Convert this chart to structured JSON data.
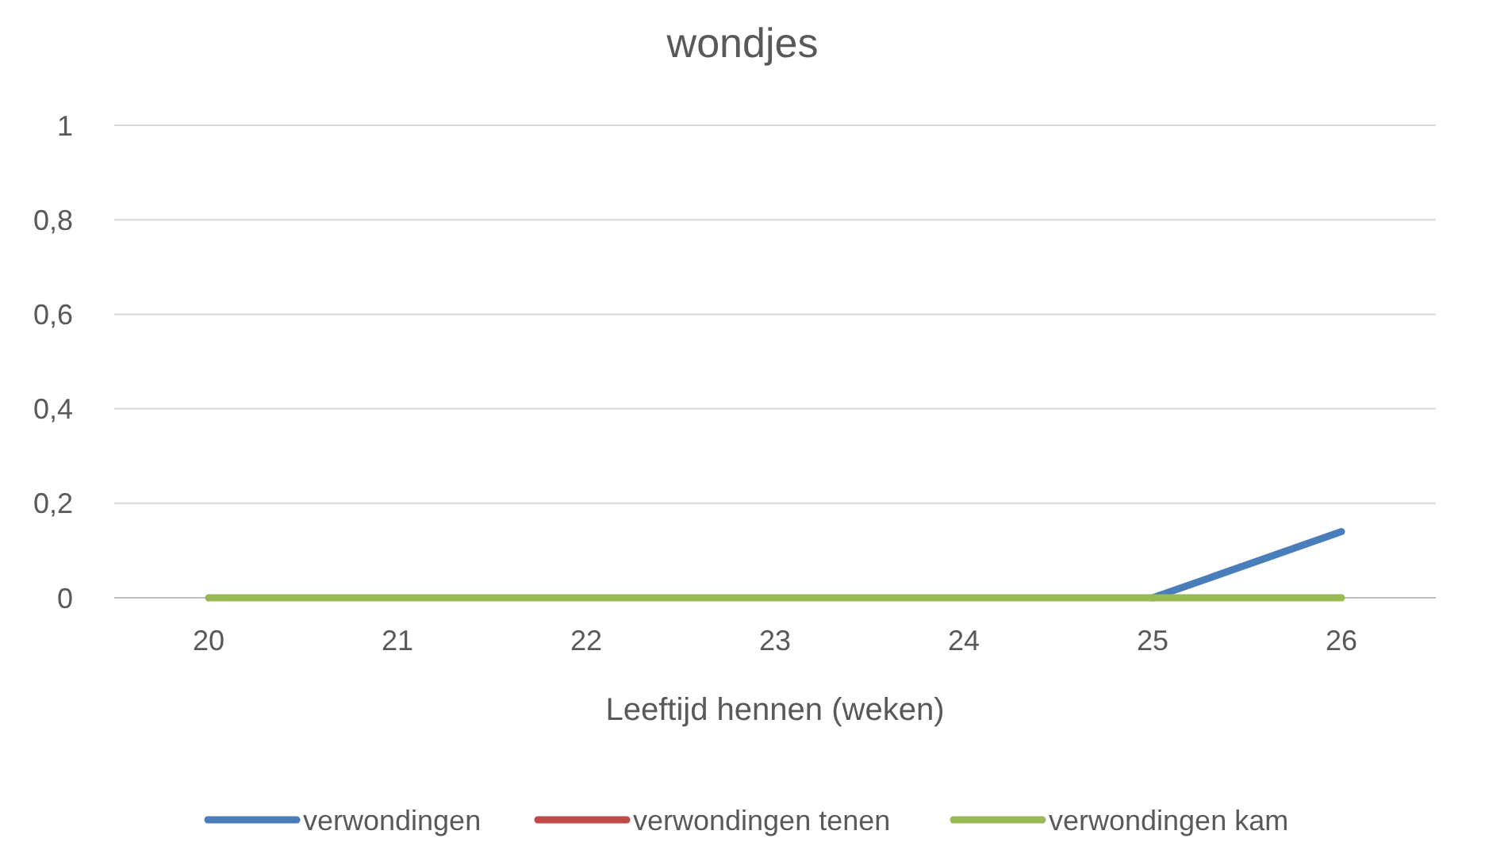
{
  "chart_data": {
    "type": "line",
    "title": "wondjes",
    "xlabel": "Leeftijd hennen (weken)",
    "categories": [
      "20",
      "21",
      "22",
      "23",
      "24",
      "25",
      "26"
    ],
    "series": [
      {
        "name": "verwondingen",
        "color": "#4a7ebb",
        "values": [
          null,
          null,
          null,
          null,
          null,
          0,
          0.14
        ]
      },
      {
        "name": "verwondingen tenen",
        "color": "#be4b48",
        "values": [
          null,
          null,
          null,
          null,
          null,
          null,
          null
        ]
      },
      {
        "name": "verwondingen kam",
        "color": "#98b954",
        "values": [
          0,
          0,
          0,
          0,
          0,
          0,
          0
        ]
      }
    ],
    "ylim": [
      0,
      1
    ],
    "yticks": [
      0,
      {
        "value": 0.2,
        "label": "0,2"
      },
      {
        "value": 0.4,
        "label": "0,4"
      },
      {
        "value": 0.6,
        "label": "0,6"
      },
      {
        "value": 0.8,
        "label": "0,8"
      },
      1
    ],
    "grid": "y",
    "legend": "bottom",
    "marker": "none",
    "line_style": "solid"
  }
}
